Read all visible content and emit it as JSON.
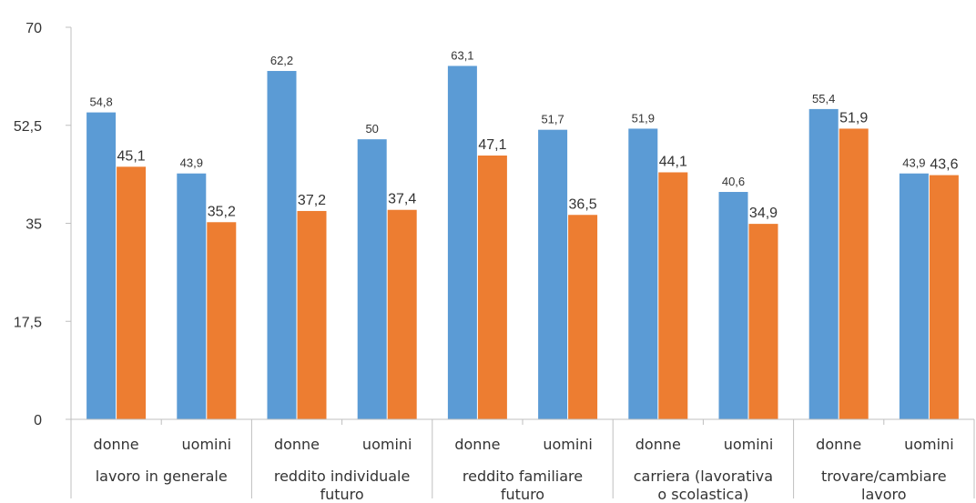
{
  "colors": {
    "donne": "#5b9bd5",
    "uomini": "#ed7d31",
    "axis": "#bfbfbf"
  },
  "chart_data": {
    "type": "bar",
    "ylim": [
      0,
      70
    ],
    "yticks": [
      "0",
      "17,5",
      "35",
      "52,5",
      "70"
    ],
    "grid": false,
    "groups": [
      {
        "label": [
          "lavoro in generale"
        ],
        "subgroups": [
          {
            "label": "donne",
            "values": [
              54.8,
              45.1
            ],
            "labels": [
              "54,8",
              "45,1"
            ]
          },
          {
            "label": "uomini",
            "values": [
              43.9,
              35.2
            ],
            "labels": [
              "43,9",
              "35,2"
            ]
          }
        ]
      },
      {
        "label": [
          "reddito individuale",
          "futuro"
        ],
        "subgroups": [
          {
            "label": "donne",
            "values": [
              62.2,
              37.2
            ],
            "labels": [
              "62,2",
              "37,2"
            ]
          },
          {
            "label": "uomini",
            "values": [
              50,
              37.4
            ],
            "labels": [
              "50",
              "37,4"
            ]
          }
        ]
      },
      {
        "label": [
          "reddito familiare",
          "futuro"
        ],
        "subgroups": [
          {
            "label": "donne",
            "values": [
              63.1,
              47.1
            ],
            "labels": [
              "63,1",
              "47,1"
            ]
          },
          {
            "label": "uomini",
            "values": [
              51.7,
              36.5
            ],
            "labels": [
              "51,7",
              "36,5"
            ]
          }
        ]
      },
      {
        "label": [
          "carriera (lavorativa",
          "o scolastica)"
        ],
        "subgroups": [
          {
            "label": "donne",
            "values": [
              51.9,
              44.1
            ],
            "labels": [
              "51,9",
              "44,1"
            ]
          },
          {
            "label": "uomini",
            "values": [
              40.6,
              34.9
            ],
            "labels": [
              "40,6",
              "34,9"
            ]
          }
        ]
      },
      {
        "label": [
          "trovare/cambiare",
          "lavoro"
        ],
        "subgroups": [
          {
            "label": "donne",
            "values": [
              55.4,
              51.9
            ],
            "labels": [
              "55,4",
              "51,9"
            ]
          },
          {
            "label": "uomini",
            "values": [
              43.9,
              43.6
            ],
            "labels": [
              "43,9",
              "43,6"
            ]
          }
        ]
      }
    ]
  }
}
